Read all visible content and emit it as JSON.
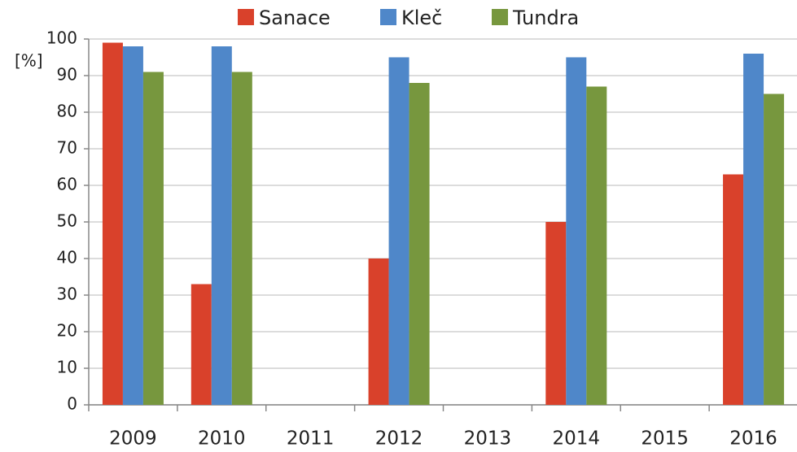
{
  "chart_data": {
    "type": "bar",
    "y_label": "[%]",
    "categories": [
      "2009",
      "2010",
      "2011",
      "2012",
      "2013",
      "2014",
      "2015",
      "2016"
    ],
    "series": [
      {
        "name": "Sanace",
        "color": "#d9412b",
        "values": [
          99,
          33,
          null,
          40,
          null,
          50,
          null,
          63
        ]
      },
      {
        "name": "Kleč",
        "color": "#4f87c9",
        "values": [
          98,
          98,
          null,
          95,
          null,
          95,
          null,
          96
        ]
      },
      {
        "name": "Tundra",
        "color": "#77973e",
        "values": [
          91,
          91,
          null,
          88,
          null,
          87,
          null,
          85
        ]
      }
    ],
    "ylim": [
      0,
      100
    ],
    "yticks": [
      0,
      10,
      20,
      30,
      40,
      50,
      60,
      70,
      80,
      90,
      100
    ],
    "grid": true,
    "legend": "top"
  }
}
